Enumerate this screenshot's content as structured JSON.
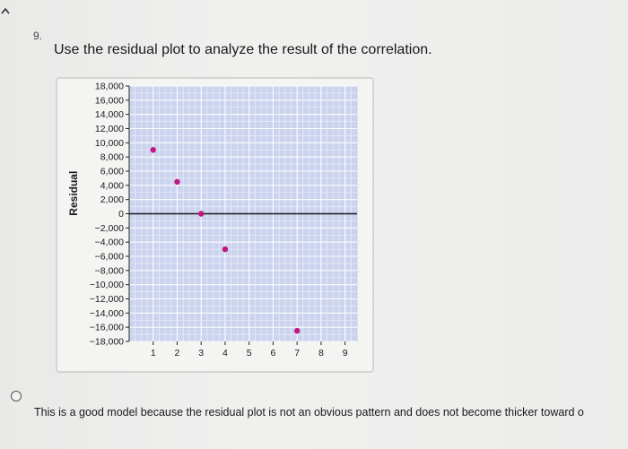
{
  "question": {
    "number": "9.",
    "text": "Use the residual plot to analyze the result of the correlation."
  },
  "colors": {
    "plot_background": "#ccd3ee",
    "grid_line": "#ffffff",
    "point": "#c2187e",
    "axis_line": "#1a1a1a"
  },
  "chart_data": {
    "type": "scatter",
    "title": "",
    "xlabel": "",
    "ylabel": "Residual",
    "xlim": [
      0,
      9.5
    ],
    "ylim": [
      -18000,
      18000
    ],
    "x_ticks": [
      "1",
      "2",
      "3",
      "4",
      "5",
      "6",
      "7",
      "8",
      "9"
    ],
    "y_ticks": [
      "18,000",
      "16,000",
      "14,000",
      "12,000",
      "10,000",
      "8,000",
      "6,000",
      "4,000",
      "2,000",
      "0",
      "−2,000",
      "−4,000",
      "−6,000",
      "−8,000",
      "−10,000",
      "−12,000",
      "−14,000",
      "−16,000",
      "−18,000"
    ],
    "grid": true,
    "horizontal_reference_line": 0,
    "series": [
      {
        "points": [
          {
            "x": 1,
            "y": 9000
          },
          {
            "x": 2,
            "y": 4500
          },
          {
            "x": 3,
            "y": 0
          },
          {
            "x": 4,
            "y": -5000
          },
          {
            "x": 7,
            "y": -16500
          }
        ]
      }
    ]
  },
  "answer_option": {
    "text": "This is a good model because the residual plot is not an obvious pattern and does not become thicker toward o"
  }
}
